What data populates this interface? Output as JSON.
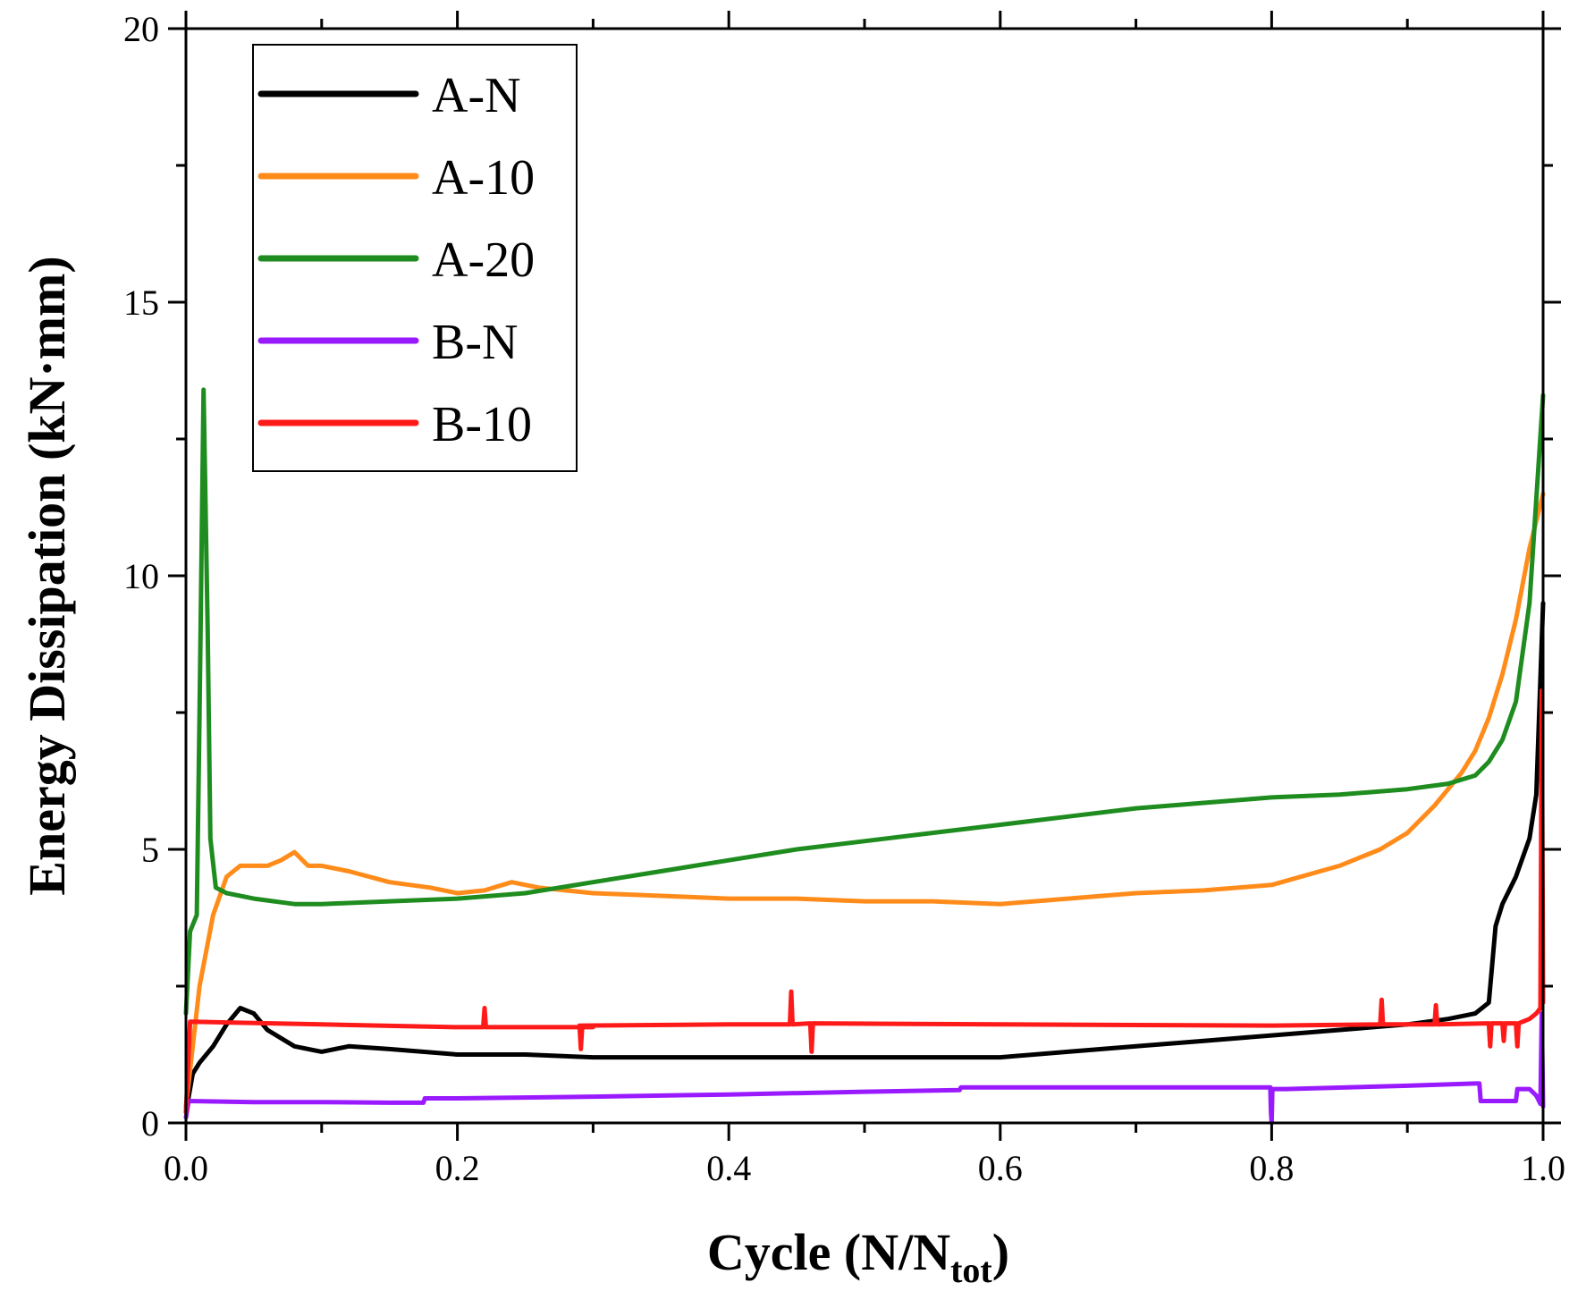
{
  "chart_data": {
    "type": "line",
    "title": "",
    "xlabel": "Cycle (N/N",
    "xlabel_sub": "tot",
    "xlabel_end": ")",
    "ylabel": "Energy Dissipation (kN·mm)",
    "xlim": [
      0,
      1
    ],
    "ylim": [
      0,
      20
    ],
    "xticks": [
      0.0,
      0.2,
      0.4,
      0.6,
      0.8,
      1.0
    ],
    "xtick_labels": [
      "0.0",
      "0.2",
      "0.4",
      "0.6",
      "0.8",
      "1.0"
    ],
    "yticks": [
      0,
      5,
      10,
      15,
      20
    ],
    "ytick_labels": [
      "0",
      "5",
      "10",
      "15",
      "20"
    ],
    "legend_position": "top-left",
    "series": [
      {
        "name": "A-N",
        "color": "#000000",
        "x": [
          0,
          0.005,
          0.01,
          0.02,
          0.03,
          0.04,
          0.05,
          0.06,
          0.08,
          0.1,
          0.12,
          0.15,
          0.2,
          0.25,
          0.3,
          0.35,
          0.4,
          0.45,
          0.5,
          0.55,
          0.6,
          0.65,
          0.7,
          0.75,
          0.8,
          0.85,
          0.9,
          0.93,
          0.95,
          0.96,
          0.965,
          0.97,
          0.98,
          0.99,
          0.995,
          1.0
        ],
        "y": [
          0.2,
          0.9,
          1.1,
          1.4,
          1.8,
          2.1,
          2.0,
          1.7,
          1.4,
          1.3,
          1.4,
          1.35,
          1.25,
          1.25,
          1.2,
          1.2,
          1.2,
          1.2,
          1.2,
          1.2,
          1.2,
          1.3,
          1.4,
          1.5,
          1.6,
          1.7,
          1.8,
          1.9,
          2.0,
          2.2,
          3.6,
          4.0,
          4.5,
          5.2,
          6.0,
          9.5
        ]
      },
      {
        "name": "A-10",
        "color": "#FF8C1A",
        "x": [
          0,
          0.01,
          0.02,
          0.03,
          0.04,
          0.05,
          0.06,
          0.07,
          0.08,
          0.09,
          0.1,
          0.12,
          0.15,
          0.18,
          0.2,
          0.22,
          0.24,
          0.26,
          0.3,
          0.35,
          0.4,
          0.45,
          0.5,
          0.55,
          0.6,
          0.65,
          0.7,
          0.75,
          0.8,
          0.85,
          0.88,
          0.9,
          0.92,
          0.94,
          0.95,
          0.96,
          0.97,
          0.98,
          0.99,
          1.0
        ],
        "y": [
          0.3,
          2.5,
          3.8,
          4.5,
          4.7,
          4.7,
          4.7,
          4.8,
          4.95,
          4.7,
          4.7,
          4.6,
          4.4,
          4.3,
          4.2,
          4.25,
          4.4,
          4.3,
          4.2,
          4.15,
          4.1,
          4.1,
          4.05,
          4.05,
          4.0,
          4.1,
          4.2,
          4.25,
          4.35,
          4.7,
          5.0,
          5.3,
          5.8,
          6.4,
          6.8,
          7.4,
          8.2,
          9.2,
          10.5,
          11.5
        ]
      },
      {
        "name": "A-20",
        "color": "#1E8C1E",
        "x": [
          0,
          0.003,
          0.008,
          0.01,
          0.013,
          0.016,
          0.018,
          0.022,
          0.03,
          0.05,
          0.08,
          0.1,
          0.15,
          0.2,
          0.25,
          0.3,
          0.35,
          0.4,
          0.45,
          0.5,
          0.55,
          0.6,
          0.65,
          0.7,
          0.75,
          0.8,
          0.85,
          0.9,
          0.93,
          0.95,
          0.96,
          0.97,
          0.98,
          0.99,
          1.0
        ],
        "y": [
          2.0,
          3.5,
          3.8,
          7.5,
          13.4,
          9.0,
          5.2,
          4.3,
          4.2,
          4.1,
          4.0,
          4.0,
          4.05,
          4.1,
          4.2,
          4.4,
          4.6,
          4.8,
          5.0,
          5.15,
          5.3,
          5.45,
          5.6,
          5.75,
          5.85,
          5.95,
          6.0,
          6.1,
          6.2,
          6.35,
          6.6,
          7.0,
          7.7,
          9.5,
          13.3
        ]
      },
      {
        "name": "B-N",
        "color": "#9A1AFF",
        "x": [
          0,
          0.002,
          0.05,
          0.1,
          0.15,
          0.175,
          0.176,
          0.2,
          0.3,
          0.4,
          0.5,
          0.57,
          0.571,
          0.7,
          0.799,
          0.7995,
          0.8,
          0.8005,
          0.81,
          0.9,
          0.95,
          0.953,
          0.954,
          0.96,
          0.97,
          0.98,
          0.981,
          0.99,
          0.995,
          0.998,
          0.999,
          1.0
        ],
        "y": [
          0.1,
          0.4,
          0.38,
          0.38,
          0.37,
          0.37,
          0.45,
          0.45,
          0.48,
          0.52,
          0.57,
          0.6,
          0.65,
          0.65,
          0.65,
          0.2,
          0.0,
          0.62,
          0.62,
          0.68,
          0.72,
          0.72,
          0.4,
          0.4,
          0.4,
          0.4,
          0.62,
          0.62,
          0.5,
          0.35,
          2.0,
          0.3
        ]
      },
      {
        "name": "B-10",
        "color": "#FF1A1A",
        "x": [
          0,
          0.003,
          0.1,
          0.2,
          0.219,
          0.22,
          0.221,
          0.3,
          0.29,
          0.291,
          0.292,
          0.4,
          0.445,
          0.446,
          0.447,
          0.46,
          0.461,
          0.462,
          0.6,
          0.8,
          0.88,
          0.881,
          0.882,
          0.92,
          0.921,
          0.922,
          0.96,
          0.961,
          0.962,
          0.97,
          0.971,
          0.972,
          0.98,
          0.981,
          0.982,
          0.99,
          0.995,
          0.998,
          0.999,
          1.0
        ],
        "y": [
          0.2,
          1.85,
          1.8,
          1.75,
          1.75,
          2.1,
          1.75,
          1.75,
          1.78,
          1.35,
          1.78,
          1.8,
          1.8,
          2.4,
          1.8,
          1.82,
          1.3,
          1.82,
          1.8,
          1.78,
          1.8,
          2.25,
          1.8,
          1.8,
          2.15,
          1.8,
          1.82,
          1.4,
          1.82,
          1.82,
          1.5,
          1.82,
          1.82,
          1.4,
          1.82,
          1.9,
          2.0,
          2.1,
          7.9,
          2.2
        ]
      }
    ]
  }
}
